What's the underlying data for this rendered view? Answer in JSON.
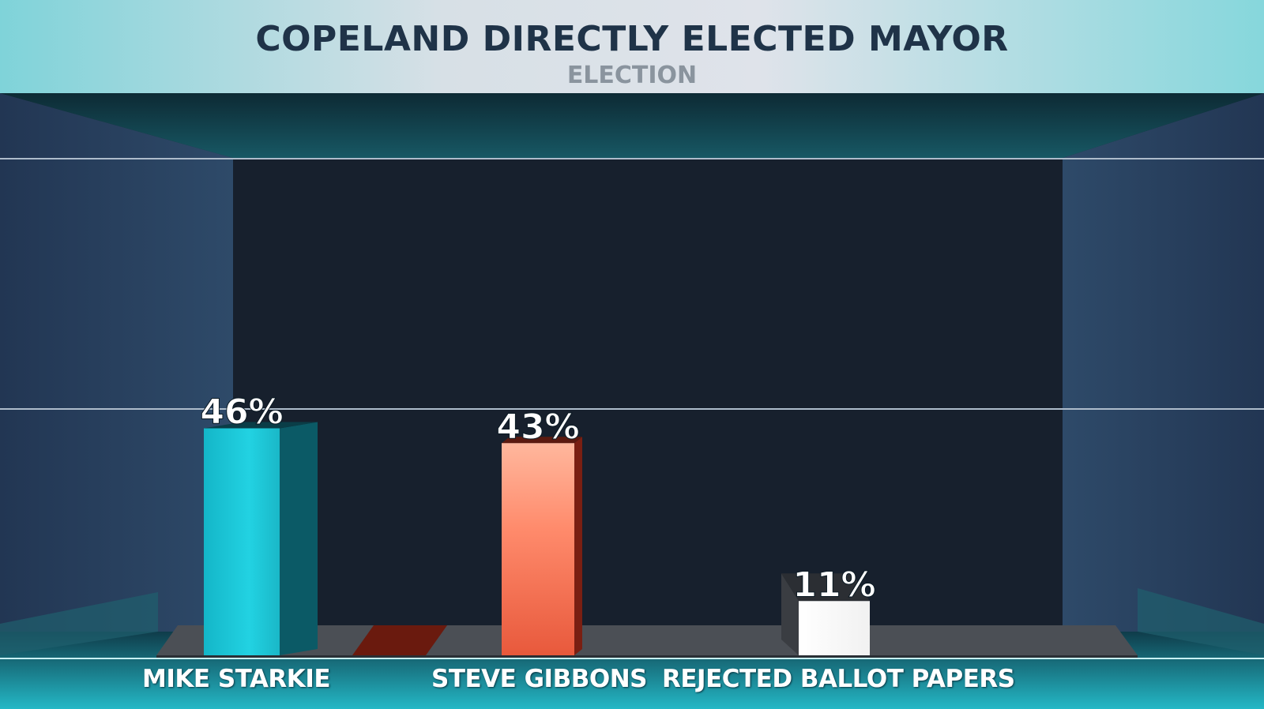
{
  "header": {
    "title": "COPELAND DIRECTLY ELECTED MAYOR",
    "subtitle": "ELECTION"
  },
  "colors": {
    "accent": "#1ec8d8",
    "second": "#f26a4f",
    "third": "#ffffff"
  },
  "chart_data": {
    "type": "bar",
    "title": "COPELAND DIRECTLY ELECTED MAYOR",
    "subtitle": "ELECTION",
    "categories": [
      "MIKE STARKIE",
      "STEVE GIBBONS",
      "REJECTED BALLOT PAPERS"
    ],
    "values": [
      46,
      43,
      11
    ],
    "data_labels": [
      "46%",
      "43%",
      "11%"
    ],
    "ylim": [
      0,
      50
    ],
    "grid": true,
    "legend": "none"
  }
}
